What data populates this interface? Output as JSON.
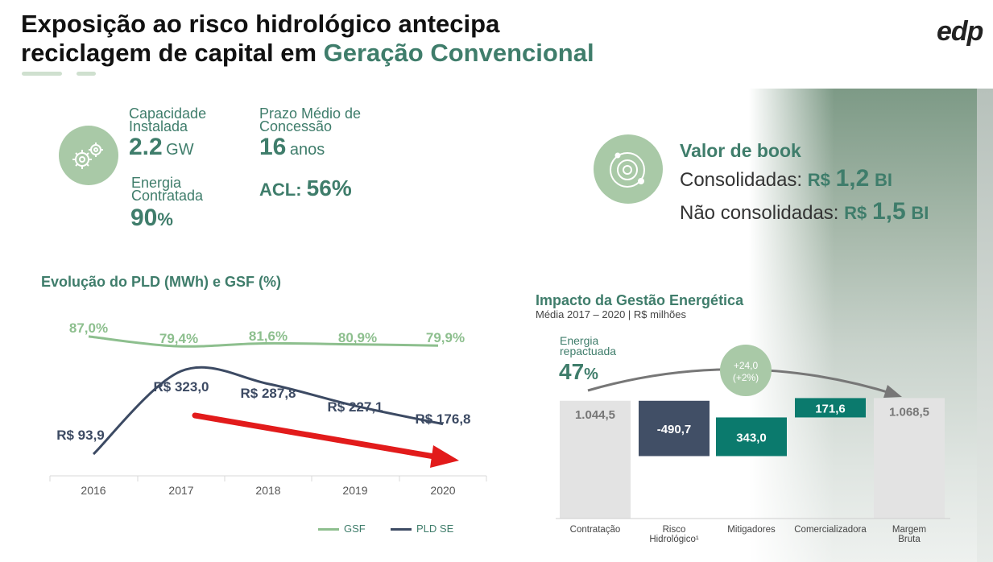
{
  "header": {
    "title_line1": "Exposição ao risco hidrológico antecipa",
    "title_line2_plain": "reciclagem de capital em ",
    "title_line2_accent": "Geração Convencional",
    "logo": "edp"
  },
  "kpis": {
    "icon": "gears-icon",
    "capacidade_label_1": "Capacidade",
    "capacidade_label_2": "Instalada",
    "capacidade_value": "2.2",
    "capacidade_unit": "GW",
    "energia_label_1": "Energia",
    "energia_label_2": "Contratada",
    "energia_value": "90",
    "energia_unit": "%",
    "prazo_label_1": "Prazo Médio de",
    "prazo_label_2": "Concessão",
    "prazo_value": "16",
    "prazo_unit": "anos",
    "acl_label": "ACL:",
    "acl_value": "56%"
  },
  "book": {
    "icon": "target-icon",
    "title": "Valor de book",
    "consolidadas_label": "Consolidadas:",
    "consolidadas_currency": "R$",
    "consolidadas_value": "1,2",
    "consolidadas_unit": "BI",
    "nao_label": "Não consolidadas:",
    "nao_currency": "R$",
    "nao_value": "1,5",
    "nao_unit": "BI"
  },
  "colors": {
    "accent": "#3f7d6b",
    "gsf": "#8dbf8e",
    "pld": "#3c4a63",
    "trend_arrow": "#e21b1b",
    "bar_grey": "#e3e3e3",
    "bar_navy": "#414f66",
    "bar_teal": "#0b7a6d"
  },
  "chart_data": [
    {
      "type": "line",
      "title": "Evolução do PLD (MWh) e GSF (%)",
      "x": [
        "2016",
        "2017",
        "2018",
        "2019",
        "2020"
      ],
      "series": [
        {
          "name": "GSF",
          "values": [
            87.0,
            79.4,
            81.6,
            80.9,
            79.9
          ],
          "labels": [
            "87,0%",
            "79,4%",
            "81,6%",
            "80,9%",
            "79,9%"
          ]
        },
        {
          "name": "PLD SE",
          "values": [
            93.9,
            323.0,
            287.8,
            227.1,
            176.8
          ],
          "labels": [
            "R$ 93,9",
            "R$ 323,0",
            "R$ 287,8",
            "R$ 227,1",
            "R$ 176,8"
          ]
        }
      ],
      "legend": "bottom-right",
      "annotations": [
        "red downward trend arrow from 2017 to 2020"
      ]
    },
    {
      "type": "bar",
      "subtype": "waterfall",
      "title": "Impacto da Gestão Energética",
      "subtitle": "Média 2017 – 2020 | R$ milhões",
      "categories": [
        "Contratação",
        "Risco Hidrológico¹",
        "Mitigadores",
        "Comercializadora",
        "Margem Bruta"
      ],
      "values": [
        1044.5,
        -490.7,
        343.0,
        171.6,
        1068.5
      ],
      "labels": [
        "1.044,5",
        "-490,7",
        "343,0",
        "171,6",
        "1.068,5"
      ],
      "kinds": [
        "total",
        "delta",
        "delta",
        "delta",
        "total"
      ],
      "callout_label_1": "Energia",
      "callout_label_2": "repactuada",
      "callout_value": "47",
      "callout_unit": "%",
      "delta_bubble_1": "+24,0",
      "delta_bubble_2": "(+2%)"
    }
  ]
}
